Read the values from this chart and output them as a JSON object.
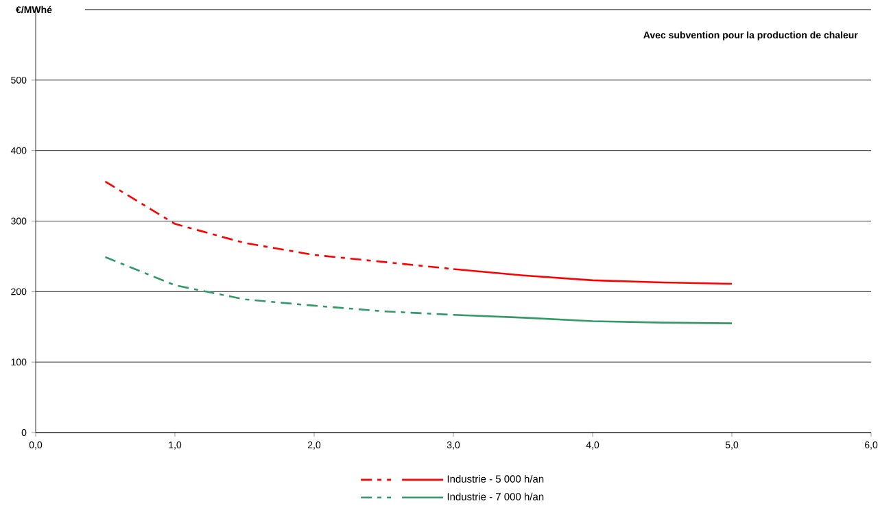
{
  "chart_data": {
    "type": "line",
    "ylabel": "€/MWhé",
    "annotations": [
      "Avec subvention pour la production de chaleur"
    ],
    "series": [
      {
        "color": "#ff0000",
        "line_style": "dashed",
        "x": [
          0.5,
          1.0,
          1.5,
          2.0,
          2.5,
          3.0
        ],
        "values": [
          356,
          296,
          269,
          252,
          242,
          232
        ]
      },
      {
        "name": "Industrie - 5 000 h/an",
        "color": "#ff0000",
        "line_style": "solid",
        "x": [
          3.0,
          3.5,
          4.0,
          4.5,
          5.0
        ],
        "values": [
          232,
          223,
          216,
          213,
          211
        ]
      },
      {
        "color": "#339966",
        "line_style": "dashed",
        "x": [
          0.5,
          1.0,
          1.5,
          2.0,
          2.5,
          3.0
        ],
        "values": [
          249,
          209,
          189,
          180,
          172,
          167
        ]
      },
      {
        "name": "Industrie - 7 000 h/an",
        "color": "#339966",
        "line_style": "solid",
        "x": [
          3.0,
          3.5,
          4.0,
          4.5,
          5.0
        ],
        "values": [
          167,
          163,
          158,
          156,
          155
        ]
      }
    ],
    "xlim": [
      0,
      6
    ],
    "ylim": [
      0,
      600
    ],
    "xticks": [
      {
        "value": 0,
        "label": "0,0"
      },
      {
        "value": 1,
        "label": "1,0"
      },
      {
        "value": 2,
        "label": "2,0"
      },
      {
        "value": 3,
        "label": "3,0"
      },
      {
        "value": 4,
        "label": "4,0"
      },
      {
        "value": 5,
        "label": "5,0"
      },
      {
        "value": 6,
        "label": "6,0"
      }
    ],
    "yticks": [
      0,
      100,
      200,
      300,
      400,
      500
    ],
    "grid": "y",
    "legend": "bottom",
    "marker": "none"
  }
}
